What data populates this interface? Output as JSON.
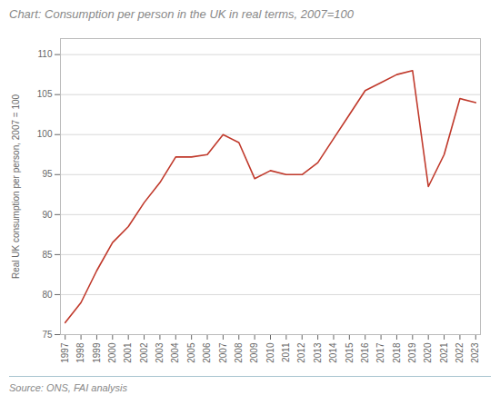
{
  "chart_data": {
    "type": "line",
    "title": "Chart: Consumption per person in the UK in real terms, 2007=100",
    "ylabel": "Real UK consumption per person, 2007 = 100",
    "source": "Source: ONS, FAI analysis",
    "x": [
      1997,
      1998,
      1999,
      2000,
      2001,
      2002,
      2003,
      2004,
      2005,
      2006,
      2007,
      2008,
      2009,
      2010,
      2011,
      2012,
      2013,
      2014,
      2015,
      2016,
      2017,
      2018,
      2019,
      2020,
      2021,
      2022,
      2023
    ],
    "values": [
      76.5,
      79.0,
      83.0,
      86.5,
      88.5,
      91.5,
      94.0,
      97.2,
      97.2,
      97.5,
      100.0,
      99.0,
      94.5,
      95.5,
      95.0,
      95.0,
      96.5,
      99.5,
      102.5,
      105.5,
      106.5,
      107.5,
      108.0,
      93.5,
      97.5,
      104.5,
      104.0
    ],
    "color": "#c0392b",
    "xlim": [
      1996.7,
      2023.3
    ],
    "xticks": [
      1997,
      1998,
      1999,
      2000,
      2001,
      2002,
      2003,
      2004,
      2005,
      2006,
      2007,
      2008,
      2009,
      2010,
      2011,
      2012,
      2013,
      2014,
      2015,
      2016,
      2017,
      2018,
      2019,
      2020,
      2021,
      2022,
      2023
    ],
    "ylim": [
      75,
      112
    ],
    "yticks": [
      75,
      80,
      85,
      90,
      95,
      100,
      105,
      110
    ],
    "grid": true
  }
}
